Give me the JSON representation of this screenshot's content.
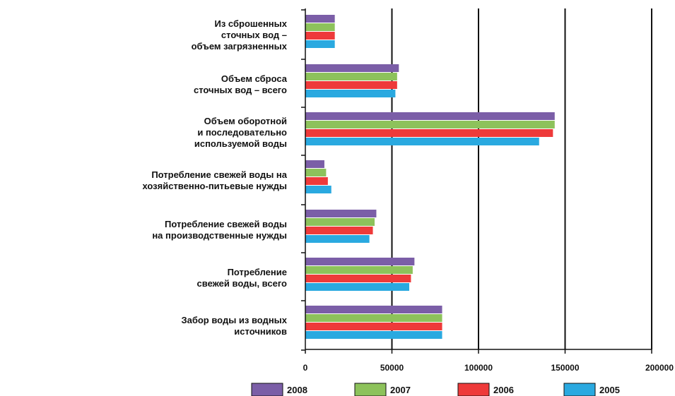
{
  "chart_data": {
    "type": "bar",
    "orientation": "horizontal",
    "title": "",
    "xlabel": "",
    "ylabel": "",
    "xlim": [
      0,
      200000
    ],
    "xticks": [
      0,
      50000,
      100000,
      150000,
      200000
    ],
    "xtick_labels": [
      "0",
      "50000",
      "100000",
      "150000",
      "200000"
    ],
    "grid": "vertical",
    "legend_position": "bottom",
    "categories": [
      {
        "lines": [
          "Из сброшенных",
          "сточных вод –",
          "объем загрязненных"
        ]
      },
      {
        "lines": [
          "Объем сброса",
          "сточных вод – всего"
        ]
      },
      {
        "lines": [
          "Объем оборотной",
          "и последовательно",
          "используемой воды"
        ]
      },
      {
        "lines": [
          "Потребление свежей воды на",
          "хозяйственно-питьевые нужды"
        ]
      },
      {
        "lines": [
          "Потребление свежей воды",
          "на производственные нужды"
        ]
      },
      {
        "lines": [
          "Потребление",
          "свежей воды, всего"
        ]
      },
      {
        "lines": [
          "Забор воды из водных",
          "источников"
        ]
      }
    ],
    "series": [
      {
        "name": "2008",
        "color": "#7b5ea7",
        "values": [
          17000,
          54000,
          144000,
          11000,
          41000,
          63000,
          79000
        ]
      },
      {
        "name": "2007",
        "color": "#8dc25b",
        "values": [
          17000,
          53000,
          144000,
          12000,
          40000,
          62000,
          79000
        ]
      },
      {
        "name": "2006",
        "color": "#ee3a3a",
        "values": [
          17000,
          53000,
          143000,
          13000,
          39000,
          61000,
          79000
        ]
      },
      {
        "name": "2005",
        "color": "#2aa9e0",
        "values": [
          17000,
          52000,
          135000,
          15000,
          37000,
          60000,
          79000
        ]
      }
    ]
  }
}
